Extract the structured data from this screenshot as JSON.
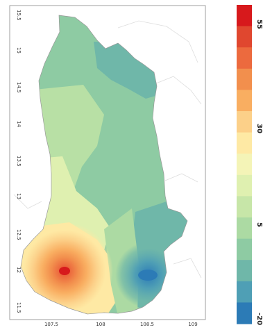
{
  "map": {
    "y_ticks": [
      "15.5",
      "15",
      "14.5",
      "14",
      "13.5",
      "13",
      "12.5",
      "12",
      "11.5"
    ],
    "x_ticks": [
      "107.5",
      "108",
      "108.5",
      "109"
    ]
  },
  "colorbar": {
    "labels": [
      "55",
      "30",
      "5",
      "-20"
    ],
    "colors": [
      "#d7191c",
      "#e0472f",
      "#ec6a3e",
      "#f28f4d",
      "#f9ae61",
      "#fcd089",
      "#fee9a4",
      "#f4f4b7",
      "#dff0b0",
      "#c7e6a8",
      "#acdaa3",
      "#8ecba3",
      "#6fb7a9",
      "#4f9fb5",
      "#2c7bb6"
    ]
  },
  "region_colors": {
    "green": "#8ecba3",
    "light_green": "#b8e0a5",
    "teal": "#6fb7a9",
    "pale": "#dff0b0",
    "blue": "#2c7bb6"
  }
}
